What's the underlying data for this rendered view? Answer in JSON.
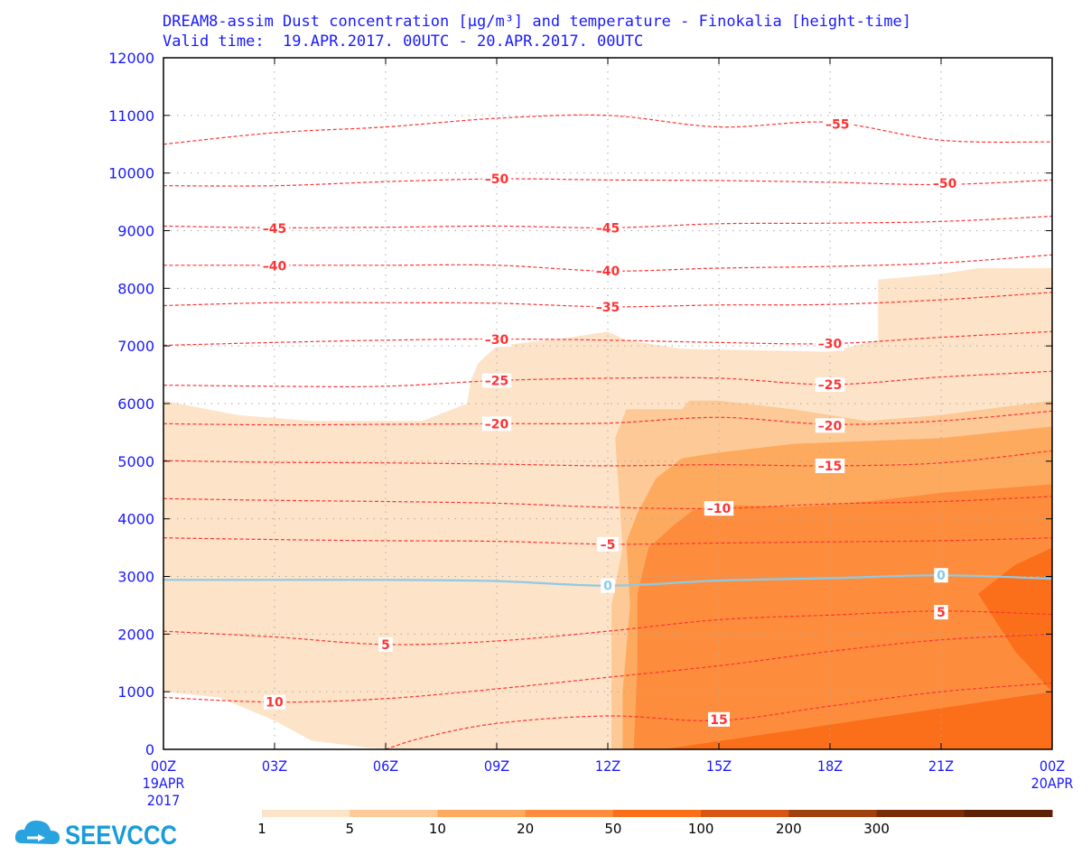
{
  "title": {
    "line1": "DREAM8-assim Dust concentration [μg/m³] and temperature - Finokalia [height-time]",
    "line2": "Valid time:  19.APR.2017. 00UTC - 20.APR.2017. 00UTC"
  },
  "logo": {
    "text": "SEEVCCC",
    "color": "#1a9cd8"
  },
  "colors": {
    "axis_text": "#1a1aff",
    "temp_contour": "#ff3333",
    "zero_isotherm": "#8ecae6",
    "grid": "#aaaaaa"
  },
  "chart_data": {
    "type": "heatmap",
    "x_unit": "hours since 00Z 19APR2017",
    "xlim": [
      0,
      24
    ],
    "ylim": [
      0,
      12000
    ],
    "x_ticks": [
      {
        "x": 0,
        "lines": [
          "00Z",
          "19APR",
          "2017"
        ]
      },
      {
        "x": 3,
        "lines": [
          "03Z"
        ]
      },
      {
        "x": 6,
        "lines": [
          "06Z"
        ]
      },
      {
        "x": 9,
        "lines": [
          "09Z"
        ]
      },
      {
        "x": 12,
        "lines": [
          "12Z"
        ]
      },
      {
        "x": 15,
        "lines": [
          "15Z"
        ]
      },
      {
        "x": 18,
        "lines": [
          "18Z"
        ]
      },
      {
        "x": 21,
        "lines": [
          "21Z"
        ]
      },
      {
        "x": 24,
        "lines": [
          "00Z",
          "20APR"
        ]
      }
    ],
    "y_ticks": [
      0,
      1000,
      2000,
      3000,
      4000,
      5000,
      6000,
      7000,
      8000,
      9000,
      10000,
      11000,
      12000
    ],
    "grid": true,
    "dust_levels": [
      {
        "threshold": "1",
        "color": "#fde3c8",
        "points": [
          [
            0,
            1000
          ],
          [
            1.5,
            900
          ],
          [
            3,
            500
          ],
          [
            4,
            150
          ],
          [
            5.5,
            30
          ],
          [
            7,
            0
          ],
          [
            24,
            0
          ],
          [
            24,
            8350
          ],
          [
            22,
            8350
          ],
          [
            21,
            8250
          ],
          [
            19.3,
            8150
          ],
          [
            19.3,
            7100
          ],
          [
            18,
            6900
          ],
          [
            14,
            6950
          ],
          [
            12.5,
            7100
          ],
          [
            12,
            7250
          ],
          [
            11,
            7150
          ],
          [
            9,
            7000
          ],
          [
            8.5,
            6700
          ],
          [
            8.3,
            6400
          ],
          [
            8.2,
            6000
          ],
          [
            7,
            5700
          ],
          [
            6,
            5700
          ],
          [
            4,
            5700
          ],
          [
            2,
            5800
          ],
          [
            0,
            6050
          ]
        ]
      },
      {
        "threshold": "5",
        "color": "#fdc996",
        "points": [
          [
            12.2,
            0
          ],
          [
            24,
            0
          ],
          [
            24,
            6050
          ],
          [
            21,
            5800
          ],
          [
            19,
            5700
          ],
          [
            17,
            5900
          ],
          [
            15,
            6050
          ],
          [
            14.2,
            6050
          ],
          [
            14,
            5900
          ],
          [
            12.5,
            5900
          ],
          [
            12.2,
            5400
          ],
          [
            12.4,
            3500
          ],
          [
            12.1,
            2500
          ],
          [
            12.1,
            0
          ]
        ]
      },
      {
        "threshold": "10",
        "color": "#fdaa5f",
        "points": [
          [
            12.4,
            0
          ],
          [
            24,
            0
          ],
          [
            24,
            5600
          ],
          [
            21,
            5400
          ],
          [
            19,
            5350
          ],
          [
            17,
            5300
          ],
          [
            15,
            5150
          ],
          [
            14,
            5050
          ],
          [
            13.3,
            4700
          ],
          [
            12.8,
            4100
          ],
          [
            12.5,
            3600
          ],
          [
            12.6,
            2500
          ],
          [
            12.4,
            1000
          ]
        ]
      },
      {
        "threshold": "20",
        "color": "#fd8d3c",
        "points": [
          [
            12.7,
            0
          ],
          [
            24,
            0
          ],
          [
            24,
            4600
          ],
          [
            21,
            4450
          ],
          [
            19,
            4300
          ],
          [
            17,
            4200
          ],
          [
            15,
            4250
          ],
          [
            14.3,
            4150
          ],
          [
            13.8,
            3900
          ],
          [
            13.1,
            3500
          ],
          [
            12.8,
            2700
          ],
          [
            12.8,
            1500
          ]
        ]
      },
      {
        "threshold": "50",
        "color": "#fb6f1a",
        "points": [
          [
            13.5,
            0
          ],
          [
            24,
            0
          ],
          [
            24,
            3500
          ],
          [
            23,
            3200
          ],
          [
            22,
            2700
          ],
          [
            23,
            1700
          ],
          [
            24,
            1000
          ]
        ]
      }
    ],
    "temperature_isotherms": [
      {
        "value": -55,
        "points": [
          [
            0,
            10500
          ],
          [
            3,
            10700
          ],
          [
            6,
            10800
          ],
          [
            9,
            10950
          ],
          [
            12,
            11000
          ],
          [
            15,
            10800
          ],
          [
            18,
            10880
          ],
          [
            21,
            10570
          ],
          [
            24,
            10540
          ]
        ],
        "labels": [
          [
            18.2,
            10850
          ]
        ]
      },
      {
        "value": -50,
        "points": [
          [
            0,
            9780
          ],
          [
            3,
            9780
          ],
          [
            6,
            9850
          ],
          [
            9,
            9900
          ],
          [
            12,
            9880
          ],
          [
            15,
            9870
          ],
          [
            18,
            9840
          ],
          [
            21,
            9800
          ],
          [
            24,
            9880
          ]
        ],
        "labels": [
          [
            9,
            9900
          ],
          [
            21.1,
            9820
          ]
        ]
      },
      {
        "value": -45,
        "points": [
          [
            0,
            9080
          ],
          [
            3,
            9050
          ],
          [
            6,
            9060
          ],
          [
            9,
            9080
          ],
          [
            12,
            9050
          ],
          [
            15,
            9120
          ],
          [
            18,
            9130
          ],
          [
            21,
            9160
          ],
          [
            24,
            9250
          ]
        ],
        "labels": [
          [
            3,
            9040
          ],
          [
            12,
            9050
          ]
        ]
      },
      {
        "value": -40,
        "points": [
          [
            0,
            8400
          ],
          [
            3,
            8400
          ],
          [
            6,
            8400
          ],
          [
            9,
            8400
          ],
          [
            12,
            8300
          ],
          [
            15,
            8350
          ],
          [
            18,
            8380
          ],
          [
            21,
            8440
          ],
          [
            24,
            8580
          ]
        ],
        "labels": [
          [
            3,
            8390
          ],
          [
            12,
            8300
          ]
        ]
      },
      {
        "value": -35,
        "points": [
          [
            0,
            7700
          ],
          [
            3,
            7750
          ],
          [
            6,
            7750
          ],
          [
            9,
            7740
          ],
          [
            12,
            7680
          ],
          [
            15,
            7710
          ],
          [
            18,
            7720
          ],
          [
            21,
            7800
          ],
          [
            24,
            7930
          ]
        ],
        "labels": [
          [
            12,
            7680
          ]
        ]
      },
      {
        "value": -30,
        "points": [
          [
            0,
            7010
          ],
          [
            3,
            7060
          ],
          [
            6,
            7100
          ],
          [
            9,
            7120
          ],
          [
            12,
            7100
          ],
          [
            15,
            7060
          ],
          [
            18,
            7040
          ],
          [
            21,
            7150
          ],
          [
            24,
            7250
          ]
        ],
        "labels": [
          [
            9,
            7110
          ],
          [
            18,
            7040
          ]
        ]
      },
      {
        "value": -25,
        "points": [
          [
            0,
            6320
          ],
          [
            3,
            6300
          ],
          [
            6,
            6300
          ],
          [
            9,
            6400
          ],
          [
            12,
            6440
          ],
          [
            15,
            6440
          ],
          [
            18,
            6330
          ],
          [
            21,
            6460
          ],
          [
            24,
            6560
          ]
        ],
        "labels": [
          [
            9,
            6400
          ],
          [
            18,
            6330
          ]
        ]
      },
      {
        "value": -20,
        "points": [
          [
            0,
            5650
          ],
          [
            3,
            5630
          ],
          [
            6,
            5640
          ],
          [
            9,
            5650
          ],
          [
            12,
            5660
          ],
          [
            15,
            5760
          ],
          [
            18,
            5640
          ],
          [
            21,
            5700
          ],
          [
            24,
            5870
          ]
        ],
        "labels": [
          [
            9,
            5650
          ],
          [
            18,
            5620
          ]
        ]
      },
      {
        "value": -15,
        "points": [
          [
            0,
            5010
          ],
          [
            3,
            4980
          ],
          [
            6,
            4970
          ],
          [
            9,
            4950
          ],
          [
            12,
            4920
          ],
          [
            15,
            4940
          ],
          [
            18,
            4920
          ],
          [
            21,
            4970
          ],
          [
            24,
            5180
          ]
        ],
        "labels": [
          [
            18,
            4920
          ]
        ]
      },
      {
        "value": -10,
        "points": [
          [
            0,
            4350
          ],
          [
            3,
            4320
          ],
          [
            6,
            4300
          ],
          [
            9,
            4270
          ],
          [
            12,
            4200
          ],
          [
            15,
            4180
          ],
          [
            18,
            4260
          ],
          [
            21,
            4300
          ],
          [
            24,
            4390
          ]
        ],
        "labels": [
          [
            15,
            4180
          ]
        ]
      },
      {
        "value": -5,
        "points": [
          [
            0,
            3670
          ],
          [
            3,
            3640
          ],
          [
            6,
            3620
          ],
          [
            9,
            3610
          ],
          [
            12,
            3560
          ],
          [
            15,
            3580
          ],
          [
            18,
            3600
          ],
          [
            21,
            3620
          ],
          [
            24,
            3670
          ]
        ],
        "labels": [
          [
            12,
            3560
          ]
        ]
      },
      {
        "value": 0,
        "zero": true,
        "points": [
          [
            0,
            2940
          ],
          [
            3,
            2940
          ],
          [
            6,
            2940
          ],
          [
            9,
            2920
          ],
          [
            12,
            2840
          ],
          [
            15,
            2930
          ],
          [
            18,
            2970
          ],
          [
            21,
            3020
          ],
          [
            24,
            2960
          ]
        ],
        "labels": [
          [
            12,
            2840
          ],
          [
            21,
            3020
          ]
        ]
      },
      {
        "value": 5,
        "points": [
          [
            0,
            2050
          ],
          [
            3,
            1950
          ],
          [
            6,
            1820
          ],
          [
            9,
            1880
          ],
          [
            12,
            2050
          ],
          [
            15,
            2250
          ],
          [
            18,
            2330
          ],
          [
            21,
            2400
          ],
          [
            24,
            2340
          ]
        ],
        "labels": [
          [
            6,
            1820
          ],
          [
            21,
            2380
          ]
        ]
      },
      {
        "value": 10,
        "points": [
          [
            0,
            900
          ],
          [
            3,
            820
          ],
          [
            6,
            880
          ],
          [
            9,
            1050
          ],
          [
            12,
            1250
          ],
          [
            15,
            1450
          ],
          [
            18,
            1700
          ],
          [
            21,
            1900
          ],
          [
            24,
            2000
          ]
        ],
        "labels": [
          [
            3,
            820
          ]
        ]
      },
      {
        "value": 15,
        "points": [
          [
            6,
            0
          ],
          [
            7,
            200
          ],
          [
            9,
            450
          ],
          [
            12,
            580
          ],
          [
            15,
            500
          ],
          [
            18,
            750
          ],
          [
            21,
            1000
          ],
          [
            24,
            1150
          ]
        ],
        "labels": [
          [
            15,
            520
          ]
        ]
      }
    ],
    "colorbar": {
      "tick_labels": [
        "1",
        "5",
        "10",
        "20",
        "50",
        "100",
        "200",
        "300"
      ],
      "colors": [
        "#fde3c8",
        "#fdc996",
        "#fdaa5f",
        "#fd8d3c",
        "#fb6f1a",
        "#d85610",
        "#a0400d",
        "#7a2e08",
        "#5c2106"
      ]
    }
  }
}
